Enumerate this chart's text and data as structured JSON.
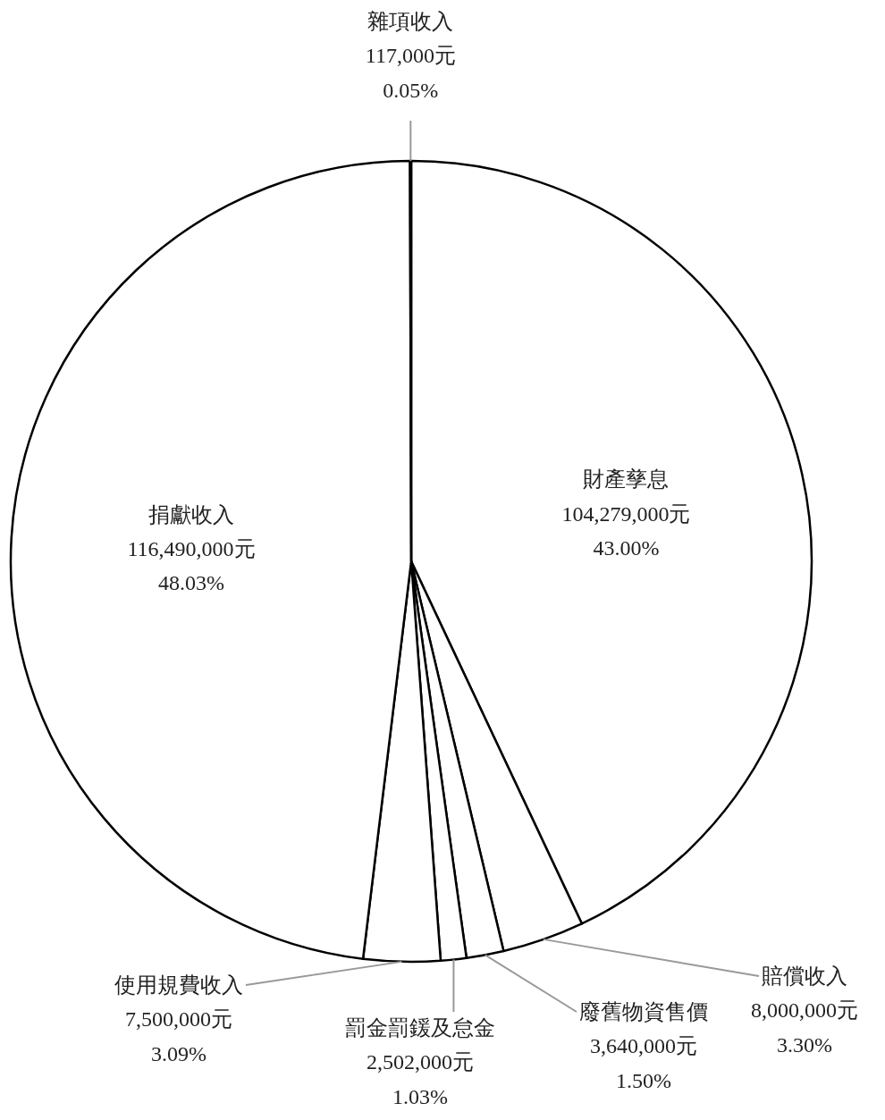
{
  "chart_data": {
    "type": "pie",
    "categories": [
      "財產孳息",
      "賠償收入",
      "廢舊物資售價",
      "罰金罰鍰及怠金",
      "使用規費收入",
      "捐獻收入",
      "雜項收入"
    ],
    "values": [
      104279000,
      8000000,
      3640000,
      2502000,
      7500000,
      116490000,
      117000
    ],
    "value_labels": [
      "104,279,000元\n43.00%",
      "8,000,000元\n3.30%",
      "3,640,000元\n1.50%",
      "2,502,000元\n1.03%",
      "7,500,000元\n3.09%",
      "116,490,000元\n48.03%",
      "117,000元\n0.05%"
    ],
    "colors": [
      "#ffffff",
      "#ffffff",
      "#ffffff",
      "#ffffff",
      "#ffffff",
      "#ffffff",
      "#ffffff"
    ]
  }
}
